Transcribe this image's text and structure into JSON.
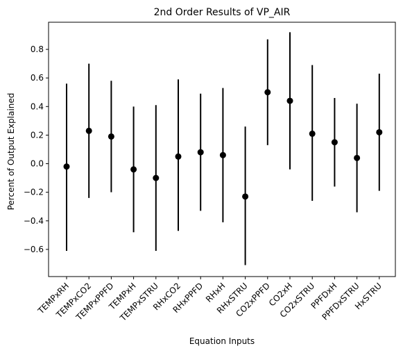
{
  "chart_data": {
    "type": "scatter",
    "title": "2nd Order Results of VP_AIR",
    "xlabel": "Equation Inputs",
    "ylabel": "Percent of Output Explained",
    "categories": [
      "TEMPxRH",
      "TEMPxCO2",
      "TEMPxPPFD",
      "TEMPxH",
      "TEMPxSTRU",
      "RHxCO2",
      "RHxPPFD",
      "RHxH",
      "RHxSTRU",
      "CO2xPPFD",
      "CO2xH",
      "CO2xSTRU",
      "PPFDxH",
      "PPFDxSTRU",
      "HxSTRU"
    ],
    "values": [
      -0.02,
      0.23,
      0.19,
      -0.04,
      -0.1,
      0.05,
      0.08,
      0.06,
      -0.23,
      0.5,
      0.44,
      0.21,
      0.15,
      0.04,
      0.22
    ],
    "lower": [
      -0.61,
      -0.24,
      -0.2,
      -0.48,
      -0.61,
      -0.47,
      -0.33,
      -0.41,
      -0.71,
      0.13,
      -0.04,
      -0.26,
      -0.16,
      -0.34,
      -0.19
    ],
    "upper": [
      0.56,
      0.7,
      0.58,
      0.4,
      0.41,
      0.59,
      0.49,
      0.53,
      0.26,
      0.87,
      0.92,
      0.69,
      0.46,
      0.42,
      0.63
    ],
    "ylim": [
      -0.79,
      0.99
    ],
    "yticks": [
      -0.6,
      -0.4,
      -0.2,
      0.0,
      0.2,
      0.4,
      0.6,
      0.8
    ],
    "ytick_labels": [
      "−0.6",
      "−0.4",
      "−0.2",
      "0.0",
      "0.2",
      "0.4",
      "0.6",
      "0.8"
    ],
    "grid": false
  }
}
